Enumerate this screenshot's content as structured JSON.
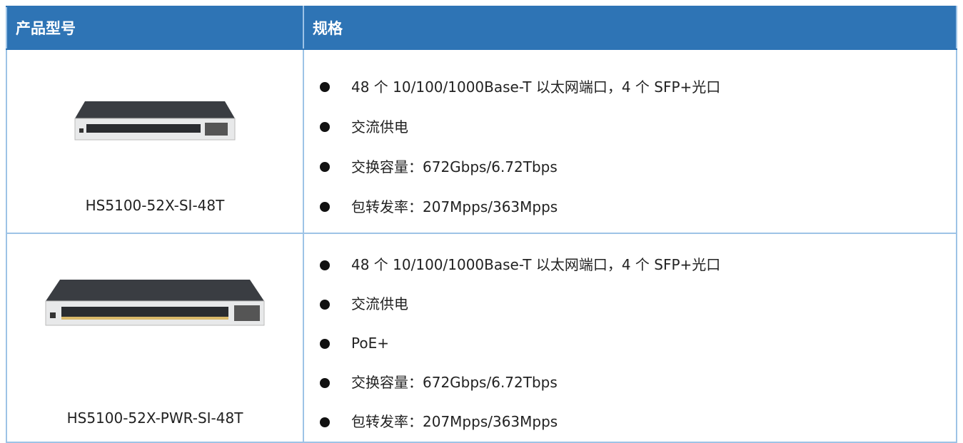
{
  "header": {
    "columns": [
      "产品型号",
      "规格"
    ]
  },
  "rows": [
    {
      "model": "HS5100-52X-SI-48T",
      "specs": [
        "48 个 10/100/1000Base-T 以太网端口，4 个 SFP+光口",
        "交流供电",
        "交换容量：672Gbps/6.72Tbps",
        "包转发率：207Mpps/363Mpps"
      ]
    },
    {
      "model": "HS5100-52X-PWR-SI-48T",
      "specs": [
        "48 个 10/100/1000Base-T 以太网端口，4 个 SFP+光口",
        "交流供电",
        "PoE+",
        "交换容量：672Gbps/6.72Tbps",
        "包转发率：207Mpps/363Mpps"
      ]
    }
  ]
}
